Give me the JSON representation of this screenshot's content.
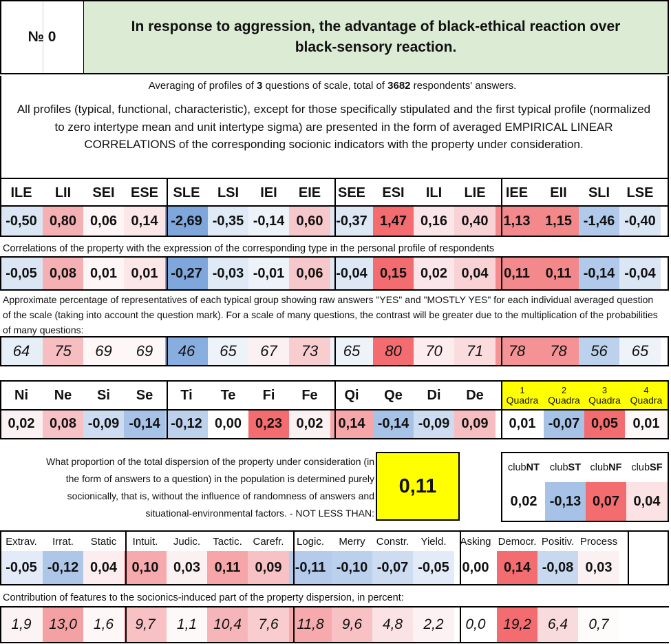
{
  "header": {
    "number_label": "№ 0",
    "title": "In response to aggression, the advantage of black-ethical reaction over black-sensory reaction."
  },
  "summary": {
    "prefix": "Averaging of profiles of ",
    "questions": "3",
    "middle": " questions of scale, total of ",
    "answers": "3682",
    "suffix": " respondents' answers."
  },
  "description": "All profiles (typical, functional, characteristic), except for those specifically stipulated and the first typical profile (normalized to zero intertype mean and unit intertype sigma) are presented in the form of averaged EMPIRICAL LINEAR CORRELATIONS of the corresponding socionic indicators with the property under consideration.",
  "types": {
    "labels": [
      "ILE",
      "LII",
      "SEI",
      "ESE",
      "SLE",
      "LSI",
      "IEI",
      "EIE",
      "SEE",
      "ESI",
      "ILI",
      "LIE",
      "IEE",
      "EII",
      "SLI",
      "LSE"
    ],
    "profile": [
      "-0,50",
      "0,80",
      "0,06",
      "0,14",
      "-2,69",
      "-0,35",
      "-0,14",
      "0,60",
      "-0,37",
      "1,47",
      "0,16",
      "0,40",
      "1,13",
      "1,15",
      "-1,46",
      "-0,40"
    ],
    "profile_colors": [
      "#dae6f4",
      "#f4b0b3",
      "#fdf5f6",
      "#fbe6e8",
      "#7fa7dc",
      "#e0eaf6",
      "#eef3fa",
      "#f7c8cb",
      "#dee8f5",
      "#f26c70",
      "#fae6e8",
      "#f8d2d4",
      "#f3898c",
      "#f3888b",
      "#b1c9ea",
      "#dbe6f4"
    ],
    "correlation_note": "Correlations of the property with the expression of the corresponding type in the personal profile of respondents",
    "correlations": [
      "-0,05",
      "0,08",
      "0,01",
      "0,01",
      "-0,27",
      "-0,03",
      "-0,01",
      "0,06",
      "-0,04",
      "0,15",
      "0,02",
      "0,04",
      "0,11",
      "0,11",
      "-0,14",
      "-0,04"
    ],
    "correlation_colors": [
      "#dae6f4",
      "#f4b0b3",
      "#fdf5f6",
      "#fbe6e8",
      "#7fa7dc",
      "#e0eaf6",
      "#eef3fa",
      "#f7c8cb",
      "#dee8f5",
      "#f26c70",
      "#fae6e8",
      "#f8d2d4",
      "#f3898c",
      "#f3888b",
      "#b1c9ea",
      "#dbe6f4"
    ],
    "percentage_note": "Approximate percentage of representatives of each typical group showing raw answers \"YES\" and \"MOSTLY YES\" for each individual averaged question of the scale (taking into account the question mark). For a scale of many questions, the contrast will be greater due to the multiplication of the probabilities of many questions:",
    "percentages": [
      "64",
      "75",
      "69",
      "69",
      "46",
      "65",
      "67",
      "73",
      "65",
      "80",
      "70",
      "71",
      "78",
      "78",
      "56",
      "65"
    ],
    "percentage_colors": [
      "#e6eef8",
      "#f6bec1",
      "#fdf7f8",
      "#fdf7f8",
      "#88addf",
      "#eef3fa",
      "#fcf1f2",
      "#f8cdd0",
      "#eef3fa",
      "#f26c70",
      "#fcecee",
      "#fadcde",
      "#f49295",
      "#f49295",
      "#bcd1ec",
      "#eef3fa"
    ]
  },
  "functions": {
    "labels": [
      "Ni",
      "Ne",
      "Si",
      "Se",
      "Ti",
      "Te",
      "Fi",
      "Fe",
      "Qi",
      "Qe",
      "Di",
      "De"
    ],
    "values": [
      "0,02",
      "0,08",
      "-0,09",
      "-0,14",
      "-0,12",
      "0,00",
      "0,23",
      "0,02",
      "0,14",
      "-0,14",
      "-0,09",
      "0,09"
    ],
    "colors": [
      "#fcf1f2",
      "#f6c2c5",
      "#cddcf0",
      "#a7c2e7",
      "#bdd1ec",
      "#ffffff",
      "#f26c70",
      "#fcf1f2",
      "#f6a6a9",
      "#a7c2e7",
      "#cddcf0",
      "#f6bec1"
    ]
  },
  "quadras": {
    "numbers": [
      "1",
      "2",
      "3",
      "4"
    ],
    "label": "Quadra",
    "values": [
      "0,01",
      "-0,07",
      "0,05",
      "0,01"
    ],
    "colors": [
      "#ffffff",
      "#a7c2e7",
      "#f26c70",
      "#fdf7f8"
    ],
    "highlight": "#ffff00"
  },
  "dispersion": {
    "note": "What proportion of the total dispersion of the property under consideration (in the form of answers to a question) in the population is determined purely socionically, that is, without the influence of randomness of answers and situational-environmental factors. - NOT LESS THAN:",
    "value": "0,11"
  },
  "clubs": {
    "prefix": "club",
    "names": [
      "NT",
      "ST",
      "NF",
      "SF"
    ],
    "values": [
      "0,02",
      "-0,13",
      "0,07",
      "0,04"
    ],
    "colors": [
      "#ffffff",
      "#a7c2e7",
      "#f26c70",
      "#fbe3e5"
    ]
  },
  "traits": {
    "labels": [
      "Extrav.",
      "Irrat.",
      "Static",
      "Intuit.",
      "Judic.",
      "Tactic.",
      "Carefr.",
      "Logic.",
      "Merry",
      "Constr.",
      "Yield.",
      "Asking",
      "Democr.",
      "Positiv.",
      "Process"
    ],
    "values": [
      "-0,05",
      "-0,12",
      "0,04",
      "0,10",
      "0,03",
      "0,11",
      "0,09",
      "-0,11",
      "-0,10",
      "-0,07",
      "-0,05",
      "0,00",
      "0,14",
      "-0,08",
      "0,03"
    ],
    "colors": [
      "#e2ebf7",
      "#aec7e9",
      "#fcedef",
      "#f6aaad",
      "#fcf1f2",
      "#f6a6a9",
      "#f8c2c5",
      "#b4cbeb",
      "#bad0ec",
      "#cddcf0",
      "#e2ebf7",
      "#ffffff",
      "#f26c70",
      "#c7d8ef",
      "#fcf1f2"
    ],
    "contribution_note": "Contribution of features to the sociоnics-induced part of the property dispersion, in percent:",
    "contributions": [
      "1,9",
      "13,0",
      "1,6",
      "9,7",
      "1,1",
      "10,4",
      "7,6",
      "11,8",
      "9,6",
      "4,8",
      "2,2",
      "0,0",
      "19,2",
      "6,4",
      "0,7"
    ],
    "contribution_colors": [
      "#fcf3f4",
      "#f4a1a4",
      "#fdf7f8",
      "#f8c1c4",
      "#fdf9f9",
      "#f6b6b9",
      "#f9cdd0",
      "#f6aaad",
      "#f8c1c4",
      "#fbe3e5",
      "#fdf2f3",
      "#ffffff",
      "#f26c70",
      "#fadbdd",
      "#fefbfb"
    ]
  }
}
